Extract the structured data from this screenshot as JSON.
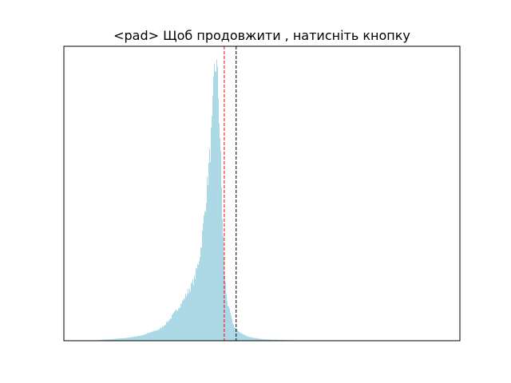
{
  "chart_data": {
    "type": "bar",
    "subtype": "histogram",
    "title": "<pad> Щоб продовжити , натисніть кнопку",
    "xlabel": "",
    "ylabel": "",
    "axes_ticks_visible": false,
    "grid": false,
    "legend": null,
    "xlim": [
      0,
      100
    ],
    "ylim": [
      0,
      100
    ],
    "bar_color": "#add8e6",
    "histogram": {
      "bin_centers": [
        10,
        12,
        14,
        16,
        18,
        20,
        22,
        23,
        24,
        25,
        26,
        27,
        28,
        29,
        30,
        31,
        32,
        33,
        33.5,
        34,
        34.5,
        35,
        35.5,
        36,
        36.5,
        37,
        37.5,
        38,
        38.5,
        39,
        39.5,
        40,
        40.5,
        41,
        41.5,
        42,
        42.5,
        43,
        44,
        45,
        46,
        47,
        48,
        49,
        50,
        52,
        54,
        56,
        58,
        60,
        62
      ],
      "counts": [
        0.4,
        0.5,
        0.8,
        1,
        1.5,
        2,
        3,
        3.5,
        4,
        5,
        6.5,
        8,
        10,
        12,
        14,
        16.5,
        19,
        22,
        25,
        28,
        32,
        38,
        45,
        52,
        60,
        68,
        78,
        95,
        100,
        88,
        70,
        45,
        26,
        17,
        12,
        10,
        7,
        5,
        3.5,
        2.5,
        1.8,
        1.3,
        1,
        0.8,
        0.6,
        0.4,
        0.3,
        0.2,
        0.15,
        0.1,
        0.05
      ]
    },
    "vlines": [
      {
        "x": 40.5,
        "color": "#ff0000",
        "style": "dashed"
      },
      {
        "x": 43.5,
        "color": "#000000",
        "style": "dashed"
      }
    ]
  }
}
